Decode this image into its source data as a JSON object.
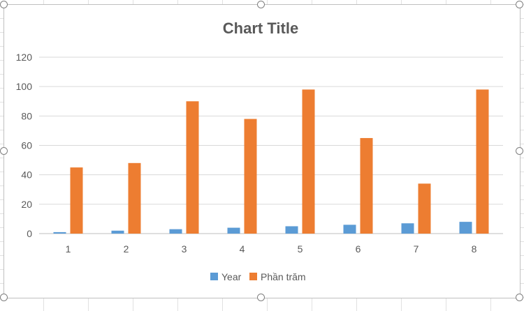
{
  "chart_data": {
    "type": "bar",
    "title": "Chart Title",
    "categories": [
      "1",
      "2",
      "3",
      "4",
      "5",
      "6",
      "7",
      "8"
    ],
    "series": [
      {
        "name": "Year",
        "color": "#5b9bd5",
        "values": [
          1,
          2,
          3,
          4,
          5,
          6,
          7,
          8
        ]
      },
      {
        "name": "Phần trăm",
        "color": "#ed7d31",
        "values": [
          45,
          48,
          90,
          78,
          98,
          65,
          34,
          98
        ]
      }
    ],
    "ylim": [
      0,
      120
    ],
    "yticks": [
      "0",
      "20",
      "40",
      "60",
      "80",
      "100",
      "120"
    ],
    "xlabel": "",
    "ylabel": "",
    "grid": true,
    "legend": "bottom"
  }
}
